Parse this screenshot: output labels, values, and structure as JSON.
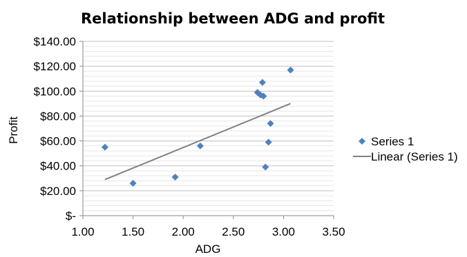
{
  "chart_data": {
    "type": "scatter",
    "title": "Relationship between ADG and profit",
    "xlabel": "ADG",
    "ylabel": "Profit",
    "xlim": [
      1.0,
      3.5
    ],
    "ylim": [
      0,
      140
    ],
    "x_ticks": [
      1.0,
      1.5,
      2.0,
      2.5,
      3.0,
      3.5
    ],
    "x_tick_labels": [
      "1.00",
      "1.50",
      "2.00",
      "2.50",
      "3.00",
      "3.50"
    ],
    "y_ticks": [
      0,
      20,
      40,
      60,
      80,
      100,
      120,
      140
    ],
    "y_tick_labels": [
      "$-",
      "$20.00",
      "$40.00",
      "$60.00",
      "$80.00",
      "$100.00",
      "$120.00",
      "$140.00"
    ],
    "grid": true,
    "legend_position": "right",
    "series": [
      {
        "name": "Series 1",
        "color": "#4f81bd",
        "x": [
          1.22,
          1.5,
          1.92,
          2.17,
          2.74,
          2.77,
          2.79,
          2.8,
          2.82,
          2.85,
          2.87,
          3.07
        ],
        "y": [
          55,
          26,
          31,
          56,
          99,
          97,
          107,
          96,
          39,
          59,
          74,
          117
        ]
      }
    ],
    "trendline": {
      "name": "Linear (Series 1)",
      "color": "#808080",
      "x": [
        1.22,
        3.07
      ],
      "y": [
        29,
        90
      ]
    }
  }
}
